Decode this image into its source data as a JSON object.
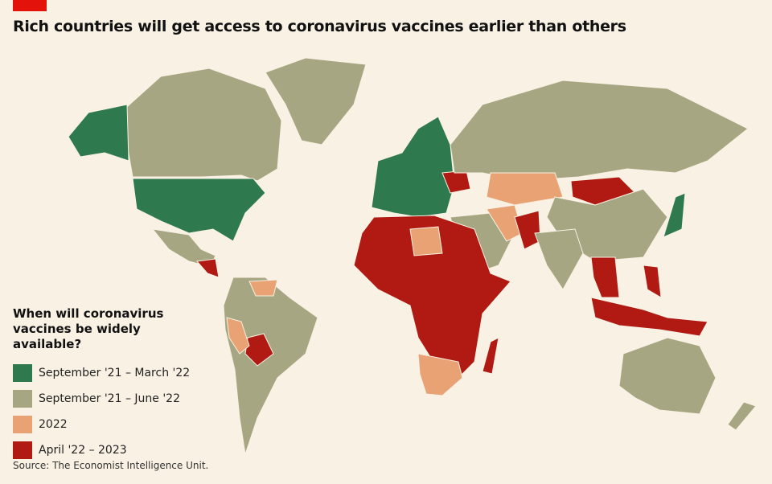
{
  "header": {
    "title": "Rich countries will get access to coronavirus vaccines earlier than others"
  },
  "legend": {
    "title": "When will coronavirus vaccines be widely available?",
    "items": [
      {
        "label": "September '21 – March '22",
        "color": "#2e7a4e"
      },
      {
        "label": "September '21 – June '22",
        "color": "#a6a782"
      },
      {
        "label": "2022",
        "color": "#e8a274"
      },
      {
        "label": "April '22 – 2023",
        "color": "#b01a12"
      }
    ]
  },
  "footer": {
    "source": "Source: The Economist Intelligence Unit."
  }
}
